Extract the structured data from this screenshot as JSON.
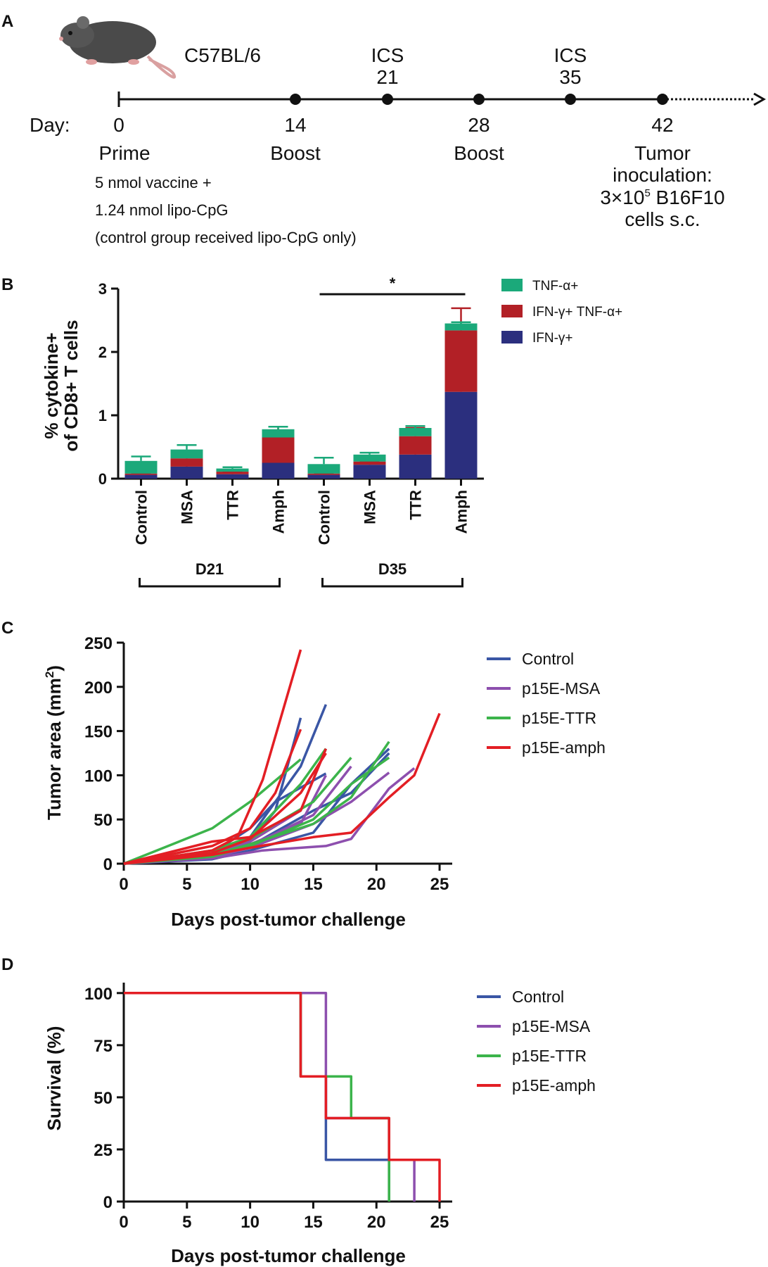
{
  "panel_a": {
    "letter": "A",
    "strain": "C57BL/6",
    "day_prefix": "Day:",
    "days": [
      "0",
      "14",
      "28",
      "42"
    ],
    "ics": [
      {
        "top": "ICS",
        "bottom": "21"
      },
      {
        "top": "ICS",
        "bottom": "35"
      }
    ],
    "events": {
      "prime": "Prime",
      "boost1": "Boost",
      "boost2": "Boost"
    },
    "prime_notes": [
      "5 nmol vaccine +",
      "1.24 nmol lipo-CpG",
      "(control group received lipo-CpG only)"
    ],
    "tumor_lines": [
      "Tumor",
      "inoculation:",
      "3×10",
      "5",
      " B16F10",
      "cells s.c."
    ],
    "colors": {
      "mouse_body": "#4a4a4a",
      "mouse_tail": "#d9a0a0"
    }
  },
  "chart_data": [
    {
      "panel": "B",
      "type": "bar",
      "stacked": true,
      "ylabel_lines": [
        "% cytokine+",
        "of CD8+ T cells"
      ],
      "ylim": [
        0,
        3
      ],
      "yticks": [
        "0",
        "1",
        "2",
        "3"
      ],
      "categories": [
        "Control",
        "MSA",
        "TTR",
        "Amph",
        "Control",
        "MSA",
        "TTR",
        "Amph"
      ],
      "groups": [
        {
          "label": "D21",
          "from": 0,
          "to": 3
        },
        {
          "label": "D35",
          "from": 4,
          "to": 7
        }
      ],
      "significance": {
        "label": "*",
        "from": 4,
        "to": 7
      },
      "series": [
        {
          "name": "IFN-γ+",
          "color": "#2b2f7e",
          "values": [
            0.06,
            0.19,
            0.07,
            0.25,
            0.06,
            0.22,
            0.38,
            1.37
          ],
          "err": [
            0.02,
            0.05,
            0.02,
            0.07,
            0.02,
            0.06,
            0.15,
            0.55
          ]
        },
        {
          "name": "IFN-γ+ TNF-α+",
          "color": "#b22026",
          "values": [
            0.02,
            0.13,
            0.04,
            0.4,
            0.02,
            0.05,
            0.29,
            0.97
          ],
          "err": [
            0.01,
            0.03,
            0.01,
            0.17,
            0.01,
            0.02,
            0.13,
            0.35
          ]
        },
        {
          "name": "TNF-α+",
          "color": "#1ba97a",
          "values": [
            0.2,
            0.14,
            0.05,
            0.13,
            0.15,
            0.11,
            0.13,
            0.11
          ],
          "err": [
            0.07,
            0.07,
            0.02,
            0.04,
            0.1,
            0.03,
            0.03,
            0.02
          ]
        }
      ],
      "legend": [
        "TNF-α+",
        "IFN-γ+ TNF-α+",
        "IFN-γ+"
      ]
    },
    {
      "panel": "C",
      "type": "line",
      "xlabel": "Days post-tumor challenge",
      "ylabel": "Tumor area (mm",
      "ylabel_sup": "2",
      "ylabel_close": ")",
      "xlim": [
        0,
        26
      ],
      "ylim": [
        0,
        250
      ],
      "xticks": [
        "0",
        "5",
        "10",
        "15",
        "20",
        "25"
      ],
      "yticks": [
        "0",
        "50",
        "100",
        "150",
        "200",
        "250"
      ],
      "series": [
        {
          "name": "Control",
          "color": "#3a56a5",
          "lines": [
            [
              [
                0,
                0
              ],
              [
                7,
                8
              ],
              [
                10,
                25
              ],
              [
                12,
                60
              ],
              [
                14,
                165
              ]
            ],
            [
              [
                0,
                0
              ],
              [
                7,
                10
              ],
              [
                10,
                30
              ],
              [
                14,
                110
              ],
              [
                16,
                180
              ]
            ],
            [
              [
                0,
                0
              ],
              [
                7,
                12
              ],
              [
                10,
                40
              ],
              [
                12,
                70
              ],
              [
                16,
                102
              ]
            ],
            [
              [
                0,
                0
              ],
              [
                7,
                8
              ],
              [
                10,
                20
              ],
              [
                15,
                60
              ],
              [
                18,
                80
              ],
              [
                21,
                125
              ]
            ],
            [
              [
                0,
                0
              ],
              [
                7,
                5
              ],
              [
                10,
                15
              ],
              [
                15,
                35
              ],
              [
                18,
                90
              ],
              [
                21,
                130
              ]
            ]
          ]
        },
        {
          "name": "p15E-MSA",
          "color": "#8d4fae",
          "lines": [
            [
              [
                0,
                0
              ],
              [
                7,
                10
              ],
              [
                10,
                25
              ],
              [
                14,
                60
              ],
              [
                16,
                130
              ]
            ],
            [
              [
                0,
                0
              ],
              [
                7,
                8
              ],
              [
                10,
                20
              ],
              [
                15,
                55
              ],
              [
                18,
                110
              ]
            ],
            [
              [
                0,
                0
              ],
              [
                7,
                6
              ],
              [
                11,
                15
              ],
              [
                16,
                20
              ],
              [
                18,
                28
              ],
              [
                21,
                85
              ],
              [
                23,
                108
              ]
            ],
            [
              [
                0,
                0
              ],
              [
                7,
                7
              ],
              [
                10,
                18
              ],
              [
                15,
                45
              ],
              [
                18,
                70
              ],
              [
                21,
                103
              ]
            ],
            [
              [
                0,
                0
              ],
              [
                7,
                9
              ],
              [
                10,
                22
              ],
              [
                14,
                45
              ],
              [
                16,
                100
              ]
            ]
          ]
        },
        {
          "name": "p15E-TTR",
          "color": "#3cb44b",
          "lines": [
            [
              [
                0,
                0
              ],
              [
                7,
                40
              ],
              [
                10,
                70
              ],
              [
                14,
                118
              ]
            ],
            [
              [
                0,
                0
              ],
              [
                7,
                15
              ],
              [
                10,
                30
              ],
              [
                14,
                90
              ],
              [
                16,
                130
              ]
            ],
            [
              [
                0,
                0
              ],
              [
                7,
                12
              ],
              [
                10,
                28
              ],
              [
                15,
                70
              ],
              [
                18,
                120
              ]
            ],
            [
              [
                0,
                0
              ],
              [
                7,
                10
              ],
              [
                10,
                22
              ],
              [
                15,
                45
              ],
              [
                18,
                75
              ],
              [
                21,
                138
              ]
            ],
            [
              [
                0,
                0
              ],
              [
                7,
                8
              ],
              [
                10,
                20
              ],
              [
                15,
                50
              ],
              [
                18,
                90
              ],
              [
                21,
                120
              ]
            ]
          ]
        },
        {
          "name": "p15E-amph",
          "color": "#e31e24",
          "lines": [
            [
              [
                0,
                0
              ],
              [
                7,
                15
              ],
              [
                9,
                30
              ],
              [
                11,
                95
              ],
              [
                14,
                242
              ]
            ],
            [
              [
                0,
                0
              ],
              [
                7,
                20
              ],
              [
                10,
                40
              ],
              [
                12,
                80
              ],
              [
                14,
                152
              ]
            ],
            [
              [
                0,
                0
              ],
              [
                7,
                12
              ],
              [
                10,
                28
              ],
              [
                14,
                80
              ],
              [
                16,
                125
              ]
            ],
            [
              [
                0,
                0
              ],
              [
                7,
                25
              ],
              [
                10,
                30
              ],
              [
                14,
                60
              ],
              [
                16,
                130
              ]
            ],
            [
              [
                0,
                0
              ],
              [
                7,
                10
              ],
              [
                10,
                18
              ],
              [
                15,
                30
              ],
              [
                18,
                35
              ],
              [
                21,
                75
              ],
              [
                23,
                100
              ],
              [
                25,
                170
              ]
            ]
          ]
        }
      ],
      "legend": [
        "Control",
        "p15E-MSA",
        "p15E-TTR",
        "p15E-amph"
      ]
    },
    {
      "panel": "D",
      "type": "line",
      "step": true,
      "xlabel": "Days post-tumor challenge",
      "ylabel": "Survival (%)",
      "xlim": [
        0,
        26
      ],
      "ylim": [
        0,
        105
      ],
      "xticks": [
        "0",
        "5",
        "10",
        "15",
        "20",
        "25"
      ],
      "yticks": [
        "0",
        "25",
        "50",
        "75",
        "100"
      ],
      "series": [
        {
          "name": "Control",
          "color": "#3a56a5",
          "points": [
            [
              0,
              100
            ],
            [
              14,
              100
            ],
            [
              14,
              60
            ],
            [
              16,
              60
            ],
            [
              16,
              20
            ],
            [
              21,
              20
            ],
            [
              21,
              0
            ]
          ]
        },
        {
          "name": "p15E-MSA",
          "color": "#8d4fae",
          "points": [
            [
              0,
              100
            ],
            [
              16,
              100
            ],
            [
              16,
              40
            ],
            [
              21,
              40
            ],
            [
              21,
              20
            ],
            [
              23,
              20
            ],
            [
              23,
              0
            ]
          ]
        },
        {
          "name": "p15E-TTR",
          "color": "#3cb44b",
          "points": [
            [
              0,
              100
            ],
            [
              14,
              100
            ],
            [
              14,
              60
            ],
            [
              18,
              60
            ],
            [
              18,
              40
            ],
            [
              21,
              40
            ],
            [
              21,
              0
            ]
          ]
        },
        {
          "name": "p15E-amph",
          "color": "#e31e24",
          "points": [
            [
              0,
              100
            ],
            [
              14,
              100
            ],
            [
              14,
              60
            ],
            [
              16,
              60
            ],
            [
              16,
              40
            ],
            [
              21,
              40
            ],
            [
              21,
              20
            ],
            [
              25,
              20
            ],
            [
              25,
              0
            ]
          ]
        }
      ],
      "legend": [
        "Control",
        "p15E-MSA",
        "p15E-TTR",
        "p15E-amph"
      ]
    }
  ]
}
